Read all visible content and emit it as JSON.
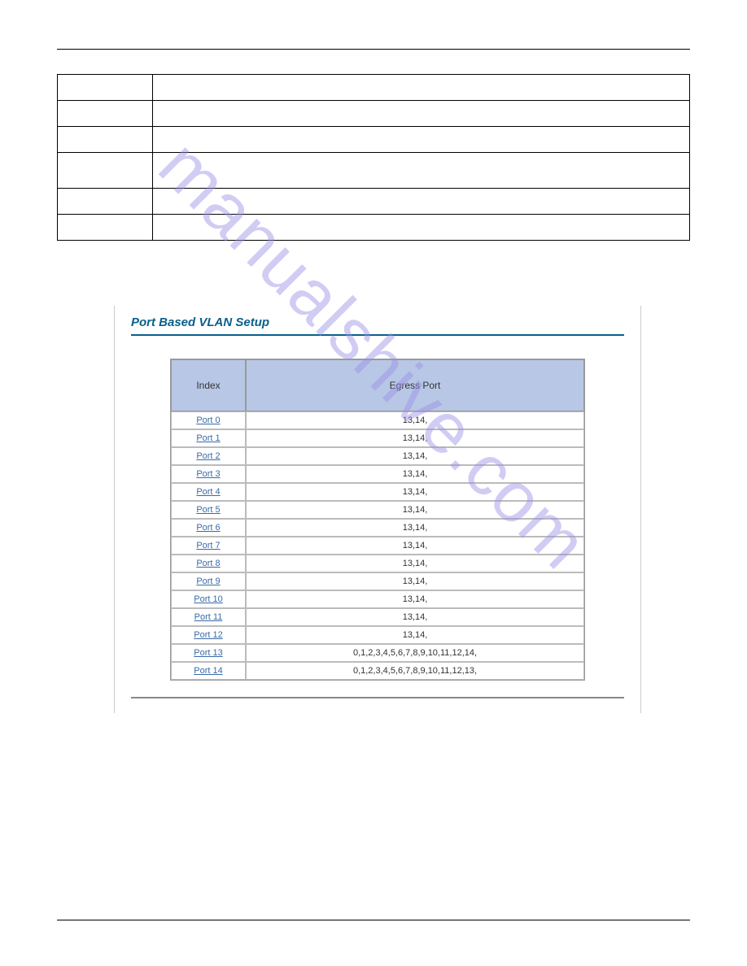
{
  "watermark": "manualshive.com",
  "panel": {
    "title": "Port Based VLAN Setup",
    "headers": {
      "index": "Index",
      "egress": "Egress Port"
    },
    "rows": [
      {
        "port": "Port 0",
        "egress": "13,14,"
      },
      {
        "port": "Port 1",
        "egress": "13,14,"
      },
      {
        "port": "Port 2",
        "egress": "13,14,"
      },
      {
        "port": "Port 3",
        "egress": "13,14,"
      },
      {
        "port": "Port 4",
        "egress": "13,14,"
      },
      {
        "port": "Port 5",
        "egress": "13,14,"
      },
      {
        "port": "Port 6",
        "egress": "13,14,"
      },
      {
        "port": "Port 7",
        "egress": "13,14,"
      },
      {
        "port": "Port 8",
        "egress": "13,14,"
      },
      {
        "port": "Port 9",
        "egress": "13,14,"
      },
      {
        "port": "Port 10",
        "egress": "13,14,"
      },
      {
        "port": "Port 11",
        "egress": "13,14,"
      },
      {
        "port": "Port 12",
        "egress": "13,14,"
      },
      {
        "port": "Port 13",
        "egress": "0,1,2,3,4,5,6,7,8,9,10,11,12,14,"
      },
      {
        "port": "Port 14",
        "egress": "0,1,2,3,4,5,6,7,8,9,10,11,12,13,"
      }
    ]
  },
  "spec_table": {
    "rows": [
      {
        "tall": false
      },
      {
        "tall": false
      },
      {
        "tall": false
      },
      {
        "tall": true
      },
      {
        "tall": false
      },
      {
        "tall": false
      }
    ]
  },
  "colors": {
    "panel_title": "#0a5f8a",
    "header_bg": "#b8c7e6",
    "link": "#3a6aa8",
    "watermark": "#9a8fe6",
    "border": "#999999"
  }
}
